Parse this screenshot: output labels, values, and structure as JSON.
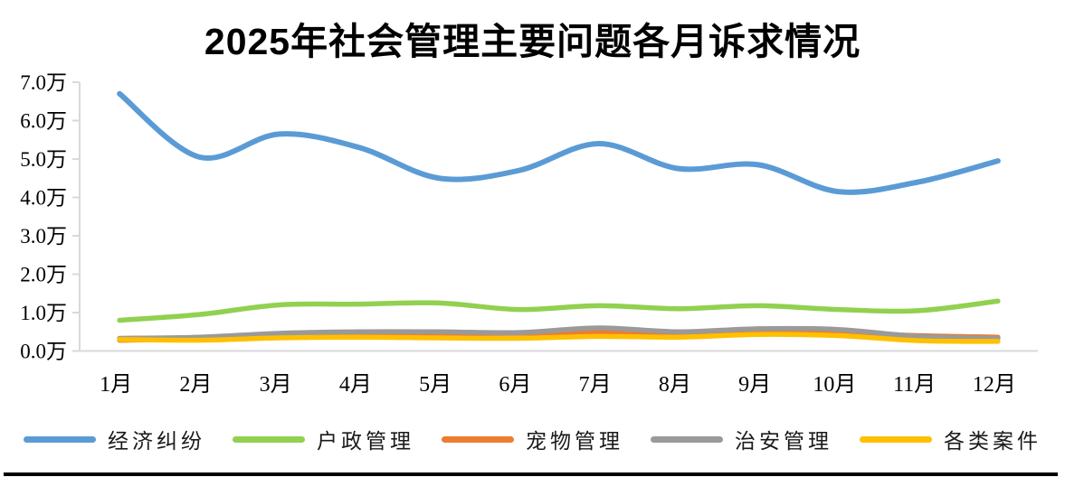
{
  "window": {
    "background_color": "#FFFFFF",
    "bottom_rule_color": "#000000"
  },
  "chart_data": {
    "type": "line",
    "title": "2025年社会管理主要问题各月诉求情况",
    "categories": [
      "1月",
      "2月",
      "3月",
      "4月",
      "5月",
      "6月",
      "7月",
      "8月",
      "9月",
      "10月",
      "11月",
      "12月"
    ],
    "unit": "万",
    "y_axis": {
      "min": 0,
      "max": 7,
      "step": 1,
      "tick_labels": [
        "0.0万",
        "1.0万",
        "2.0万",
        "3.0万",
        "4.0万",
        "5.0万",
        "6.0万",
        "7.0万"
      ]
    },
    "series": [
      {
        "name": "经济纠纷",
        "color": "#5B9BD5",
        "values": [
          6.7,
          5.05,
          5.65,
          5.3,
          4.5,
          4.7,
          5.4,
          4.75,
          4.85,
          4.15,
          4.4,
          4.95
        ]
      },
      {
        "name": "户政管理",
        "color": "#92D050",
        "values": [
          0.8,
          0.95,
          1.2,
          1.22,
          1.25,
          1.08,
          1.18,
          1.1,
          1.18,
          1.08,
          1.05,
          1.3
        ]
      },
      {
        "name": "宠物管理",
        "color": "#ED7D31",
        "values": [
          0.28,
          0.32,
          0.4,
          0.44,
          0.45,
          0.46,
          0.48,
          0.48,
          0.5,
          0.48,
          0.4,
          0.36
        ]
      },
      {
        "name": "治安管理",
        "color": "#9A9A9A",
        "values": [
          0.33,
          0.36,
          0.46,
          0.5,
          0.5,
          0.48,
          0.6,
          0.5,
          0.58,
          0.56,
          0.38,
          0.33
        ]
      },
      {
        "name": "各类案件",
        "color": "#FFC000",
        "values": [
          0.3,
          0.28,
          0.34,
          0.36,
          0.34,
          0.33,
          0.38,
          0.36,
          0.43,
          0.4,
          0.27,
          0.25
        ]
      }
    ],
    "legend_position": "bottom",
    "grid": false,
    "smooth_lines": true,
    "axis_color": "#D9D9D9",
    "text_color": "#000000"
  }
}
